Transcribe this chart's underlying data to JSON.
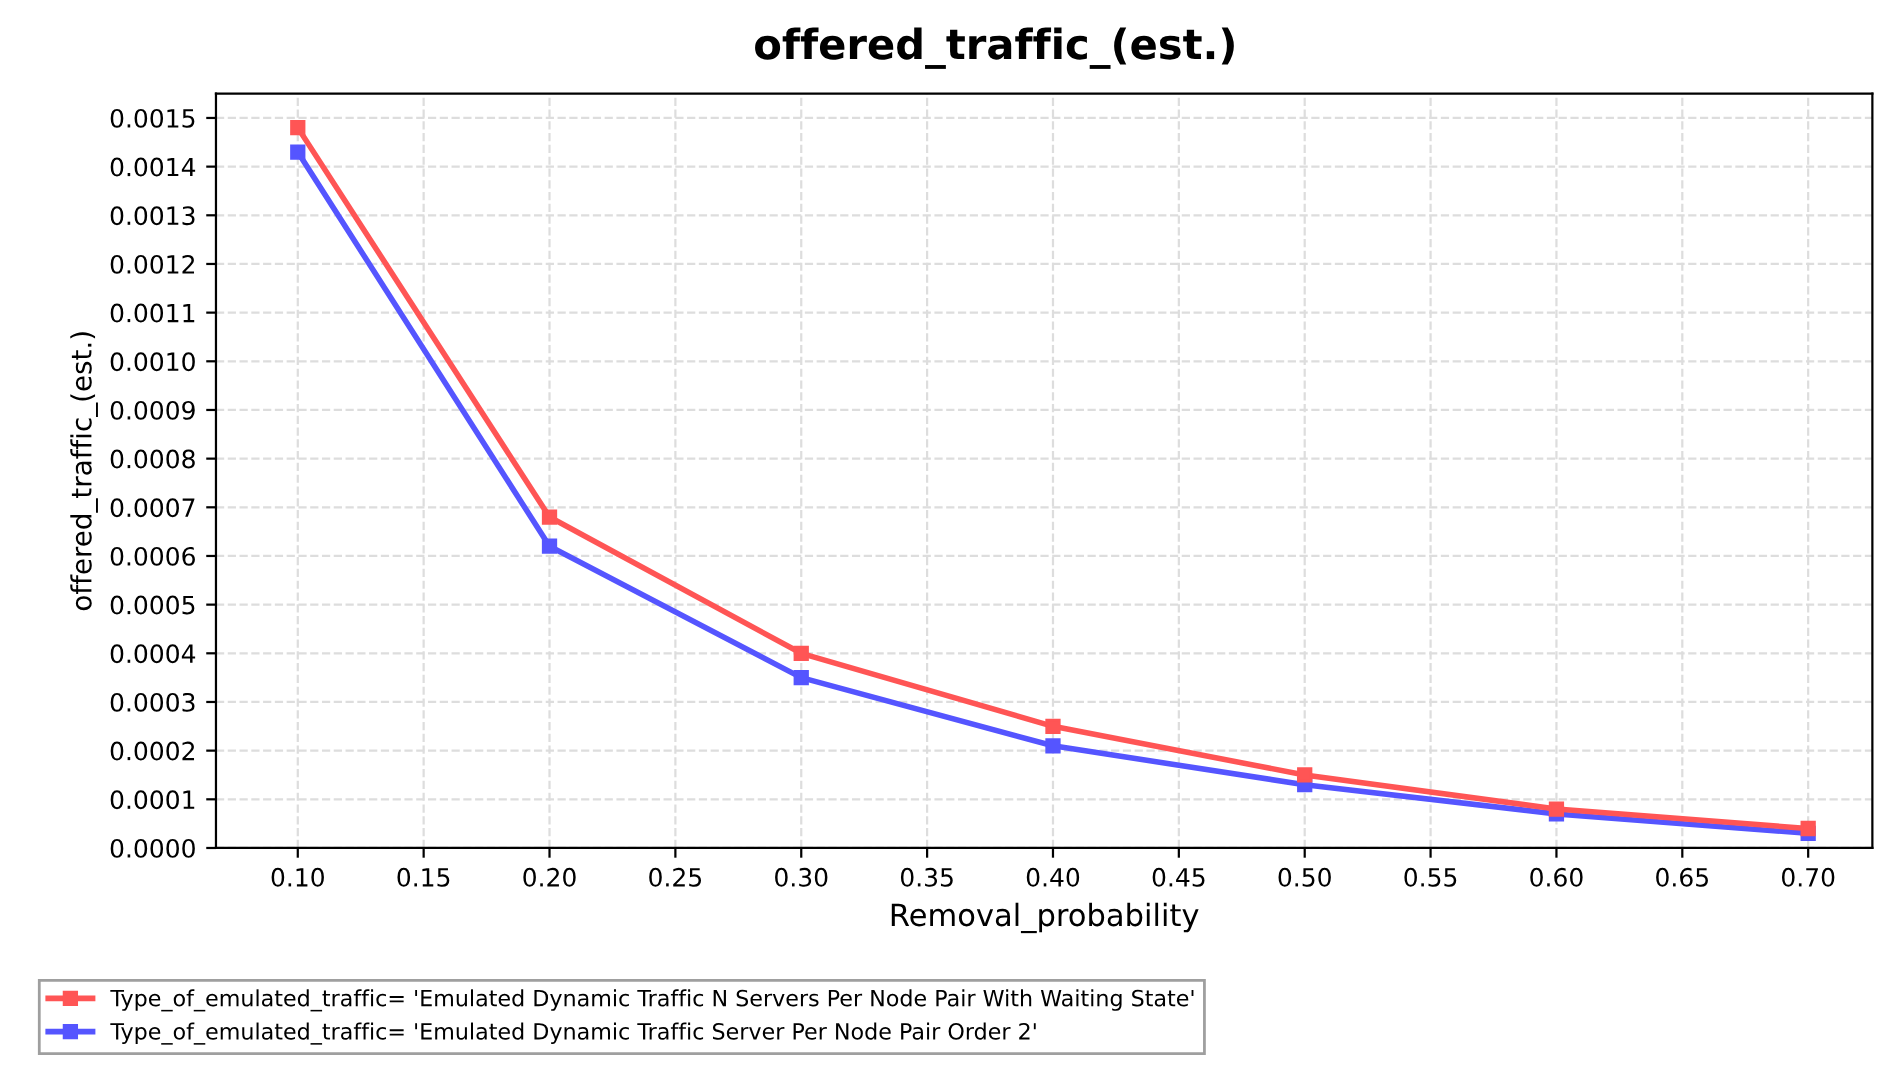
{
  "chart_data": {
    "type": "line",
    "title": "offered_traffic_(est.)",
    "xlabel": "Removal_probability",
    "ylabel": "offered_traffic_(est.)",
    "x": [
      0.1,
      0.2,
      0.3,
      0.4,
      0.5,
      0.6,
      0.7
    ],
    "series": [
      {
        "name": "Type_of_emulated_traffic= 'Emulated Dynamic Traffic N Servers Per Node Pair With Waiting State'",
        "color": "#ff5555",
        "values": [
          0.00148,
          0.00068,
          0.0004,
          0.00025,
          0.00015,
          8e-05,
          4e-05
        ]
      },
      {
        "name": "Type_of_emulated_traffic= 'Emulated Dynamic Traffic Server Per Node Pair Order 2'",
        "color": "#5555ff",
        "values": [
          0.00143,
          0.00062,
          0.00035,
          0.00021,
          0.00013,
          7e-05,
          3e-05
        ]
      }
    ],
    "xlim": [
      0.0675,
      0.7255
    ],
    "xticks": [
      {
        "value": 0.1,
        "label": "0.10"
      },
      {
        "value": 0.15,
        "label": "0.15"
      },
      {
        "value": 0.2,
        "label": "0.20"
      },
      {
        "value": 0.25,
        "label": "0.25"
      },
      {
        "value": 0.3,
        "label": "0.30"
      },
      {
        "value": 0.35,
        "label": "0.35"
      },
      {
        "value": 0.4,
        "label": "0.40"
      },
      {
        "value": 0.45,
        "label": "0.45"
      },
      {
        "value": 0.5,
        "label": "0.50"
      },
      {
        "value": 0.55,
        "label": "0.55"
      },
      {
        "value": 0.6,
        "label": "0.60"
      },
      {
        "value": 0.65,
        "label": "0.65"
      },
      {
        "value": 0.7,
        "label": "0.70"
      }
    ],
    "ylim": [
      0,
      0.00155
    ],
    "yticks": [
      {
        "value": 0,
        "label": "0.0000"
      },
      {
        "value": 0.0001,
        "label": "0.0001"
      },
      {
        "value": 0.0002,
        "label": "0.0002"
      },
      {
        "value": 0.0003,
        "label": "0.0003"
      },
      {
        "value": 0.0004,
        "label": "0.0004"
      },
      {
        "value": 0.0005,
        "label": "0.0005"
      },
      {
        "value": 0.0006,
        "label": "0.0006"
      },
      {
        "value": 0.0007,
        "label": "0.0007"
      },
      {
        "value": 0.0008,
        "label": "0.0008"
      },
      {
        "value": 0.0009,
        "label": "0.0009"
      },
      {
        "value": 0.001,
        "label": "0.0010"
      },
      {
        "value": 0.0011,
        "label": "0.0011"
      },
      {
        "value": 0.0012,
        "label": "0.0012"
      },
      {
        "value": 0.0013,
        "label": "0.0013"
      },
      {
        "value": 0.0014,
        "label": "0.0014"
      },
      {
        "value": 0.0015,
        "label": "0.0015"
      }
    ],
    "grid": true,
    "legend": "bottom",
    "marker": "square",
    "line_style": "solid"
  }
}
